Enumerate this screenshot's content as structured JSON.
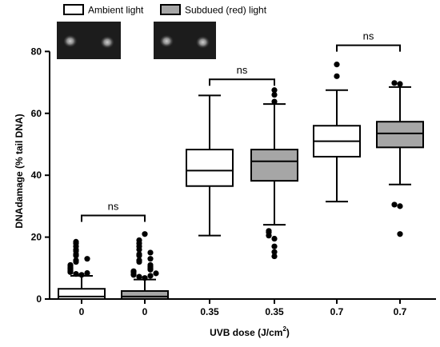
{
  "chart_data": {
    "type": "box",
    "xlabel": "UVB dose (J/cm",
    "xlabel_sup": "2",
    "xlabel_end": ")",
    "ylabel": "DNAdamage (% tail DNA)",
    "ylim": [
      0,
      85
    ],
    "yticks": [
      0,
      20,
      40,
      60,
      80
    ],
    "grid": false,
    "legend_position": "top",
    "legend": [
      {
        "name": "Ambient light",
        "color": "#ffffff"
      },
      {
        "name": "Subdued (red) light",
        "color": "#a6a6a6"
      }
    ],
    "groups": [
      {
        "label": "0",
        "series": "Ambient light",
        "fill": "#ffffff",
        "whisker_low": 0,
        "q1": 0,
        "median": 0.8,
        "q3": 3.3,
        "whisker_high": 7.5,
        "outliers": [
          7.8,
          8.1,
          8.4,
          8.7,
          9.0,
          9.3,
          9.6,
          9.9,
          10.2,
          10.6,
          11.0,
          12.0,
          12.5,
          13.0,
          14.0,
          14.5,
          15.5,
          16.0,
          17.0,
          18.0,
          18.5
        ]
      },
      {
        "label": "0",
        "series": "Subdued (red) light",
        "fill": "#a6a6a6",
        "whisker_low": 0,
        "q1": 0,
        "median": 0.8,
        "q3": 2.6,
        "whisker_high": 6.3,
        "outliers": [
          6.8,
          7.2,
          7.5,
          7.8,
          8.0,
          8.3,
          8.7,
          9.0,
          9.5,
          10.0,
          10.5,
          11.0,
          12.0,
          12.5,
          13.0,
          14.0,
          14.5,
          15.0,
          16.0,
          17.0,
          18.0,
          19.0,
          21.0
        ]
      },
      {
        "label": "0.35",
        "series": "Ambient light",
        "fill": "#ffffff",
        "whisker_low": 20.5,
        "q1": 36.5,
        "median": 41.5,
        "q3": 48.3,
        "whisker_high": 65.8,
        "outliers": []
      },
      {
        "label": "0.35",
        "series": "Subdued (red) light",
        "fill": "#a6a6a6",
        "whisker_low": 24.0,
        "q1": 38.2,
        "median": 44.5,
        "q3": 48.3,
        "whisker_high": 63.0,
        "outliers": [
          13.8,
          15.2,
          17.0,
          19.5,
          20.5,
          21.5,
          22.0,
          63.8,
          66.0,
          67.5
        ]
      },
      {
        "label": "0.7",
        "series": "Ambient light",
        "fill": "#ffffff",
        "whisker_low": 31.5,
        "q1": 46.0,
        "median": 51.0,
        "q3": 56.0,
        "whisker_high": 67.5,
        "outliers": [
          72.0,
          75.8
        ]
      },
      {
        "label": "0.7",
        "series": "Subdued (red) light",
        "fill": "#a6a6a6",
        "whisker_low": 37.0,
        "q1": 49.0,
        "median": 53.5,
        "q3": 57.3,
        "whisker_high": 68.5,
        "outliers": [
          21.0,
          30.0,
          30.5,
          69.5,
          69.8
        ]
      }
    ],
    "annotations": [
      {
        "text": "ns",
        "between": [
          0,
          1
        ],
        "level": 27
      },
      {
        "text": "ns",
        "between": [
          2,
          3
        ],
        "level": 71
      },
      {
        "text": "ns",
        "between": [
          4,
          5
        ],
        "level": 82
      }
    ],
    "inset_images": [
      {
        "description": "comet-assay-ambient",
        "near": 0
      },
      {
        "description": "comet-assay-subdued",
        "near": 1
      }
    ]
  }
}
